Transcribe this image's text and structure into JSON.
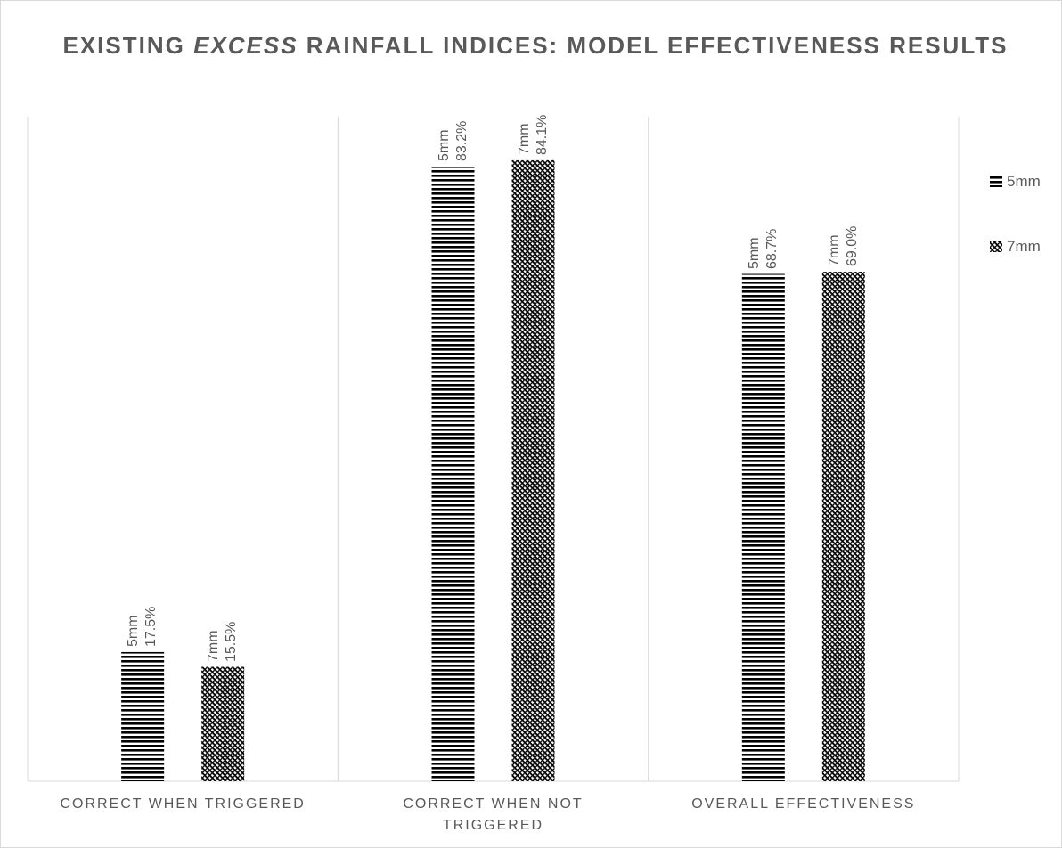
{
  "chart_data": {
    "type": "bar",
    "title": "EXISTING EXCESS RAINFALL INDICES: MODEL EFFECTIVENESS RESULTS",
    "title_parts": {
      "before": "EXISTING ",
      "emphasis": "EXCESS",
      "after": " RAINFALL INDICES: MODEL EFFECTIVENESS RESULTS"
    },
    "categories": [
      "CORRECT WHEN TRIGGERED",
      "CORRECT WHEN NOT TRIGGERED",
      "OVERALL EFFECTIVENESS"
    ],
    "series": [
      {
        "name": "5mm",
        "pattern": "horizontal-stripes",
        "values": [
          17.5,
          83.2,
          68.7
        ],
        "labels": [
          "17.5%",
          "83.2%",
          "68.7%"
        ]
      },
      {
        "name": "7mm",
        "pattern": "diagonal-dots",
        "values": [
          15.5,
          84.1,
          69.0
        ],
        "labels": [
          "15.5%",
          "84.1%",
          "69.0%"
        ]
      }
    ],
    "unit": "%",
    "ylim": [
      0,
      90
    ],
    "legend_position": "right",
    "grid": "vertical category separators",
    "colors": {
      "bar": "#000000",
      "text": "#595959",
      "gridline": "#d9d9d9"
    }
  }
}
